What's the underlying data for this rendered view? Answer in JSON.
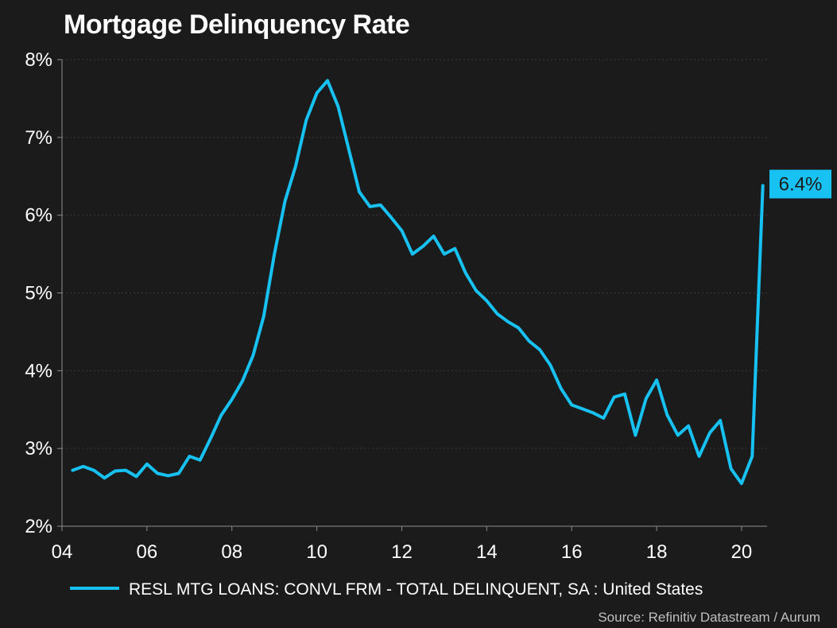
{
  "chart_data": {
    "type": "line",
    "title": "Mortgage Delinquency Rate",
    "xlabel": "",
    "ylabel": "",
    "y_unit": "%",
    "ylim": [
      2,
      8
    ],
    "xlim": [
      2004.0,
      2020.6
    ],
    "y_ticks": [
      2,
      3,
      4,
      5,
      6,
      7,
      8
    ],
    "y_tick_labels": [
      "2%",
      "3%",
      "4%",
      "5%",
      "6%",
      "7%",
      "8%"
    ],
    "x_ticks": [
      2004,
      2006,
      2008,
      2010,
      2012,
      2014,
      2016,
      2018,
      2020
    ],
    "x_tick_labels": [
      "04",
      "06",
      "08",
      "10",
      "12",
      "14",
      "16",
      "18",
      "20"
    ],
    "grid": true,
    "legend_position": "bottom",
    "series": [
      {
        "name": "RESL MTG LOANS: CONVL FRM - TOTAL DELINQUENT, SA : United States",
        "color": "#17c1f2",
        "x": [
          2004.25,
          2004.5,
          2004.75,
          2005.0,
          2005.25,
          2005.5,
          2005.75,
          2006.0,
          2006.25,
          2006.5,
          2006.75,
          2007.0,
          2007.25,
          2007.5,
          2007.75,
          2008.0,
          2008.25,
          2008.5,
          2008.75,
          2009.0,
          2009.25,
          2009.5,
          2009.75,
          2010.0,
          2010.25,
          2010.5,
          2010.75,
          2011.0,
          2011.25,
          2011.5,
          2011.75,
          2012.0,
          2012.25,
          2012.5,
          2012.75,
          2013.0,
          2013.25,
          2013.5,
          2013.75,
          2014.0,
          2014.25,
          2014.5,
          2014.75,
          2015.0,
          2015.25,
          2015.5,
          2015.75,
          2016.0,
          2016.25,
          2016.5,
          2016.75,
          2017.0,
          2017.25,
          2017.5,
          2017.75,
          2018.0,
          2018.25,
          2018.5,
          2018.75,
          2019.0,
          2019.25,
          2019.5,
          2019.75,
          2020.0,
          2020.25,
          2020.5
        ],
        "values": [
          2.72,
          2.77,
          2.72,
          2.62,
          2.71,
          2.72,
          2.64,
          2.8,
          2.68,
          2.65,
          2.68,
          2.9,
          2.85,
          3.13,
          3.43,
          3.63,
          3.87,
          4.2,
          4.7,
          5.5,
          6.18,
          6.63,
          7.22,
          7.57,
          7.73,
          7.4,
          6.85,
          6.3,
          6.11,
          6.13,
          5.97,
          5.8,
          5.5,
          5.6,
          5.73,
          5.5,
          5.57,
          5.26,
          5.03,
          4.9,
          4.73,
          4.63,
          4.55,
          4.38,
          4.27,
          4.07,
          3.77,
          3.56,
          3.51,
          3.46,
          3.39,
          3.66,
          3.7,
          3.17,
          3.64,
          3.88,
          3.43,
          3.17,
          3.29,
          2.9,
          3.2,
          3.36,
          2.74,
          2.55,
          2.9,
          6.38
        ]
      }
    ],
    "annotations": [
      {
        "label": "6.4%",
        "value": 6.4,
        "color": "#17c1f2"
      }
    ],
    "source": "Source: Refinitiv Datastream / Aurum"
  }
}
